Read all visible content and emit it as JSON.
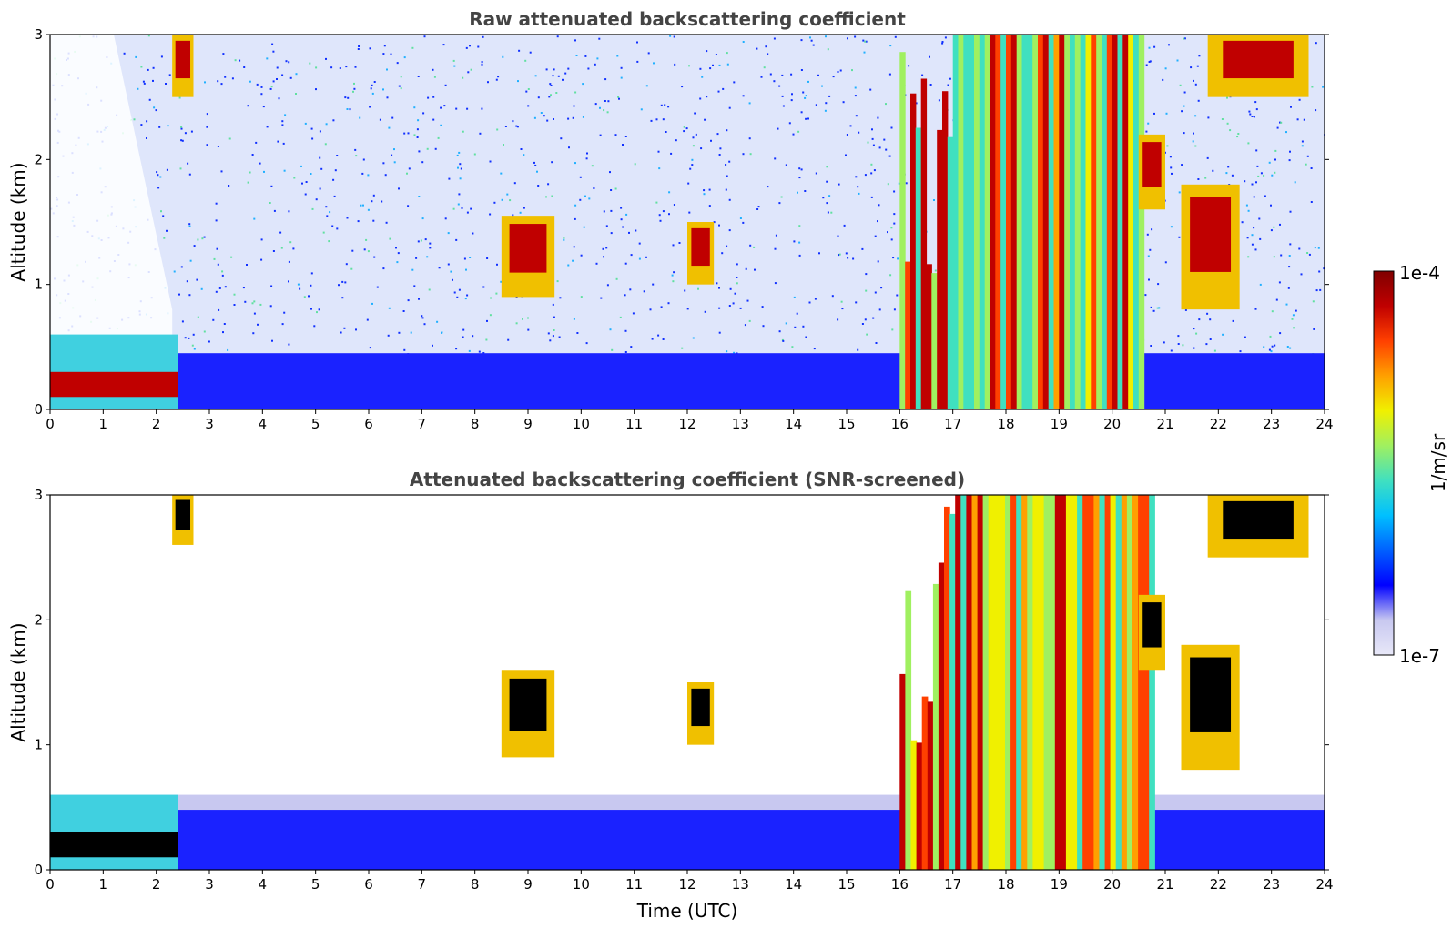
{
  "chart_data": [
    {
      "type": "heatmap",
      "title": "Raw attenuated backscattering coefficient",
      "xlabel": "",
      "ylabel": "Altitude (km)",
      "xlim": [
        0,
        24
      ],
      "ylim": [
        0,
        3
      ],
      "xticks": [
        "0",
        "1",
        "2",
        "3",
        "4",
        "5",
        "6",
        "7",
        "8",
        "9",
        "10",
        "11",
        "12",
        "13",
        "14",
        "15",
        "16",
        "17",
        "18",
        "19",
        "20",
        "21",
        "22",
        "23",
        "24"
      ],
      "yticks": [
        "0",
        "1",
        "2",
        "3"
      ],
      "grid": false,
      "features": [
        {
          "kind": "boundary_layer",
          "t_start": 0,
          "t_end": 24,
          "top_km": 0.45
        },
        {
          "kind": "dense_layer",
          "t_start": 0,
          "t_end": 2.4,
          "bottom_km": 0.1,
          "top_km": 0.6
        },
        {
          "kind": "cloud",
          "t_start": 8.5,
          "t_end": 9.5,
          "bottom_km": 0.9,
          "top_km": 1.55
        },
        {
          "kind": "cloud",
          "t_start": 12.0,
          "t_end": 12.5,
          "bottom_km": 1.0,
          "top_km": 1.5
        },
        {
          "kind": "precipitation",
          "t_start": 16.0,
          "t_end": 20.6,
          "bottom_km": 0.0,
          "top_km": 3.0
        },
        {
          "kind": "cloud",
          "t_start": 20.5,
          "t_end": 21.0,
          "bottom_km": 1.6,
          "top_km": 2.2
        },
        {
          "kind": "cloud",
          "t_start": 21.3,
          "t_end": 22.4,
          "bottom_km": 0.8,
          "top_km": 1.8
        },
        {
          "kind": "cloud",
          "t_start": 21.8,
          "t_end": 23.7,
          "bottom_km": 2.5,
          "top_km": 3.0
        },
        {
          "kind": "cloud",
          "t_start": 2.3,
          "t_end": 2.7,
          "bottom_km": 2.5,
          "top_km": 3.0
        }
      ]
    },
    {
      "type": "heatmap",
      "title": "Attenuated backscattering coefficient (SNR-screened)",
      "xlabel": "Time (UTC)",
      "ylabel": "Altitude (km)",
      "xlim": [
        0,
        24
      ],
      "ylim": [
        0,
        3
      ],
      "xticks": [
        "0",
        "1",
        "2",
        "3",
        "4",
        "5",
        "6",
        "7",
        "8",
        "9",
        "10",
        "11",
        "12",
        "13",
        "14",
        "15",
        "16",
        "17",
        "18",
        "19",
        "20",
        "21",
        "22",
        "23",
        "24"
      ],
      "yticks": [
        "0",
        "1",
        "2",
        "3"
      ],
      "grid": false,
      "features": [
        {
          "kind": "boundary_layer",
          "t_start": 0,
          "t_end": 24,
          "top_km": 0.6
        },
        {
          "kind": "dense_layer",
          "t_start": 0,
          "t_end": 2.4,
          "bottom_km": 0.1,
          "top_km": 0.6
        },
        {
          "kind": "cloud",
          "t_start": 8.5,
          "t_end": 9.5,
          "bottom_km": 0.9,
          "top_km": 1.6
        },
        {
          "kind": "cloud",
          "t_start": 12.0,
          "t_end": 12.5,
          "bottom_km": 1.0,
          "top_km": 1.5
        },
        {
          "kind": "precipitation",
          "t_start": 16.0,
          "t_end": 20.8,
          "bottom_km": 0.0,
          "top_km": 3.0
        },
        {
          "kind": "cloud",
          "t_start": 20.5,
          "t_end": 21.0,
          "bottom_km": 1.6,
          "top_km": 2.2
        },
        {
          "kind": "cloud",
          "t_start": 21.3,
          "t_end": 22.4,
          "bottom_km": 0.8,
          "top_km": 1.8
        },
        {
          "kind": "cloud",
          "t_start": 21.8,
          "t_end": 23.7,
          "bottom_km": 2.5,
          "top_km": 3.0
        },
        {
          "kind": "cloud",
          "t_start": 2.3,
          "t_end": 2.7,
          "bottom_km": 2.6,
          "top_km": 3.0
        }
      ]
    }
  ],
  "colorbar": {
    "label": "1/m/sr",
    "min_label": "1e-7",
    "max_label": "1e-4",
    "scale": "log",
    "colormap": [
      "#e8e8f8",
      "#c8c8f0",
      "#0000ff",
      "#0060ff",
      "#00c0ff",
      "#40e0c0",
      "#a0f060",
      "#f0f000",
      "#ffa000",
      "#ff4000",
      "#c00000",
      "#800000"
    ]
  }
}
